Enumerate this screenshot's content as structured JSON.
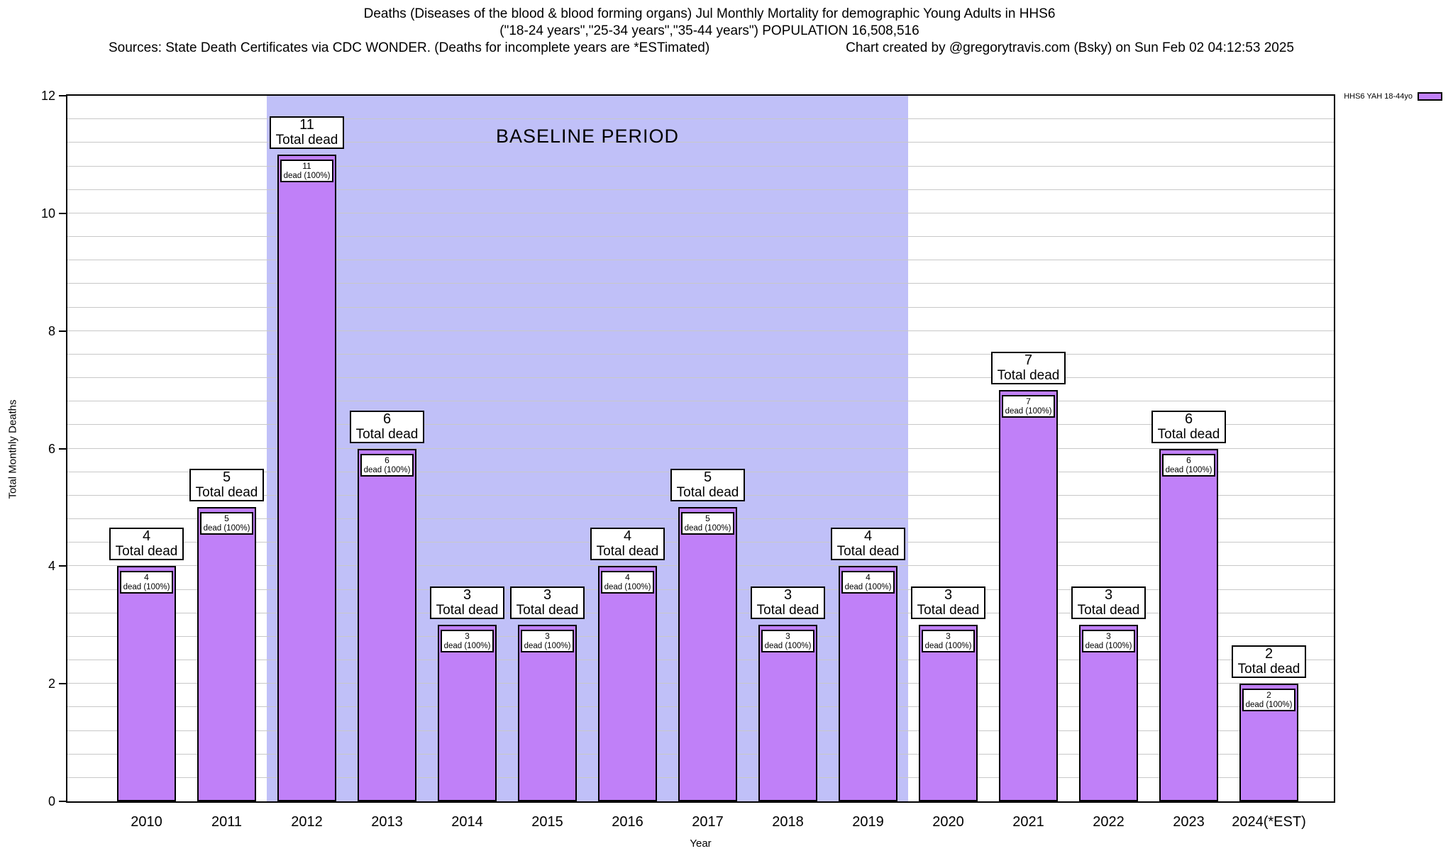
{
  "title": {
    "line1": "Deaths (Diseases of the blood & blood forming organs) Jul Monthly Mortality for demographic Young Adults in HHS6",
    "line2": "(\"18-24 years\",\"25-34 years\",\"35-44 years\") POPULATION 16,508,516",
    "sources": "Sources: State Death Certificates via CDC WONDER. (Deaths for incomplete years are *ESTimated)",
    "credit": "Chart created by @gregorytravis.com (Bsky) on Sun Feb 02 04:12:53 2025"
  },
  "legend": {
    "label": "HHS6 YAH 18-44yo",
    "swatch_color": "#c080f8"
  },
  "baseline": {
    "label": "BASELINE PERIOD",
    "from": "2012",
    "to": "2019",
    "background_color": "#c0c0f8"
  },
  "axes": {
    "y_label": "Total Monthly Deaths",
    "x_label": "Year",
    "y_ticks": [
      0,
      2,
      4,
      6,
      8,
      10,
      12
    ],
    "y_max": 12,
    "y_minor_step": 0.4,
    "grid_color": "#c8c8c8"
  },
  "bar_annotation": {
    "total_suffix": "Total dead",
    "inner_suffix": "dead (100%)"
  },
  "chart_data": {
    "type": "bar",
    "title": "Deaths (Diseases of the blood & blood forming organs) Jul Monthly Mortality for demographic Young Adults in HHS6",
    "categories": [
      "2010",
      "2011",
      "2012",
      "2013",
      "2014",
      "2015",
      "2016",
      "2017",
      "2018",
      "2019",
      "2020",
      "2021",
      "2022",
      "2023",
      "2024(*EST)"
    ],
    "values": [
      4,
      5,
      11,
      6,
      3,
      3,
      4,
      5,
      3,
      4,
      3,
      7,
      3,
      6,
      2
    ],
    "series_name": "HHS6 YAH 18-44yo",
    "xlabel": "Year",
    "ylabel": "Total Monthly Deaths",
    "ylim": [
      0,
      12
    ],
    "bar_color": "#c080f8",
    "grid": true,
    "legend_position": "top-right",
    "baseline_period": {
      "label": "BASELINE PERIOD",
      "from": "2012",
      "to": "2019"
    }
  }
}
